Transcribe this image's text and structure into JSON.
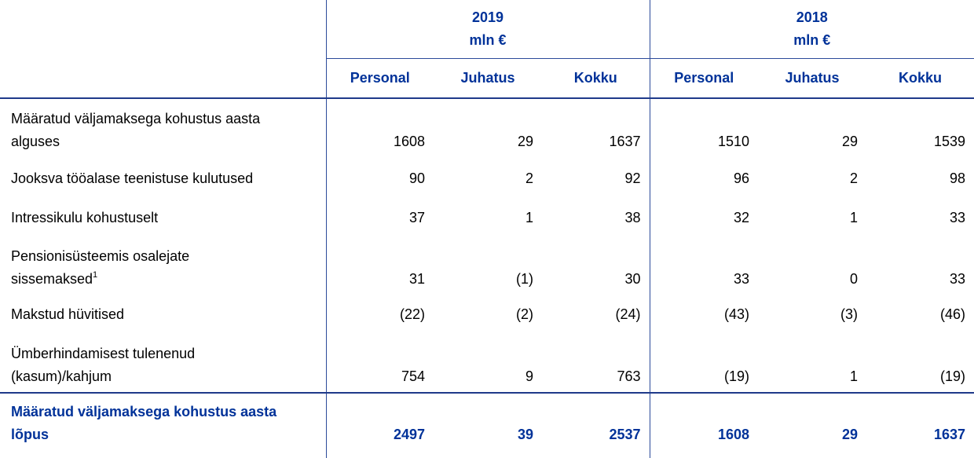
{
  "header": {
    "groups": [
      {
        "year": "2019",
        "unit": "mln €"
      },
      {
        "year": "2018",
        "unit": "mln €"
      }
    ],
    "columns": [
      "Personal",
      "Juhatus",
      "Kokku",
      "Personal",
      "Juhatus",
      "Kokku"
    ]
  },
  "rows": [
    {
      "label": [
        "Määratud väljamaksega kohustus aasta",
        "alguses"
      ],
      "values": [
        "1608",
        "29",
        "1637",
        "1510",
        "29",
        "1539"
      ]
    },
    {
      "label": [
        "Jooksva tööalase teenistuse kulutused"
      ],
      "values": [
        "90",
        "2",
        "92",
        "96",
        "2",
        "98"
      ]
    },
    {
      "label": [
        "Intressikulu kohustuselt"
      ],
      "values": [
        "37",
        "1",
        "38",
        "32",
        "1",
        "33"
      ]
    },
    {
      "label": [
        "Pensionisüsteemis osalejate",
        "sissemaksed"
      ],
      "footnote": "1",
      "values": [
        "31",
        "(1)",
        "30",
        "33",
        "0",
        "33"
      ]
    },
    {
      "label": [
        "Makstud hüvitised"
      ],
      "values": [
        "(22)",
        "(2)",
        "(24)",
        "(43)",
        "(3)",
        "(46)"
      ]
    },
    {
      "label": [
        "Ümberhindamisest tulenenud",
        "(kasum)/kahjum"
      ],
      "values": [
        "754",
        "9",
        "763",
        "(19)",
        "1",
        "(19)"
      ]
    }
  ],
  "total": {
    "label": [
      "Määratud väljamaksega kohustus aasta",
      "lõpus"
    ],
    "values": [
      "2497",
      "39",
      "2537",
      "1608",
      "29",
      "1637"
    ]
  }
}
